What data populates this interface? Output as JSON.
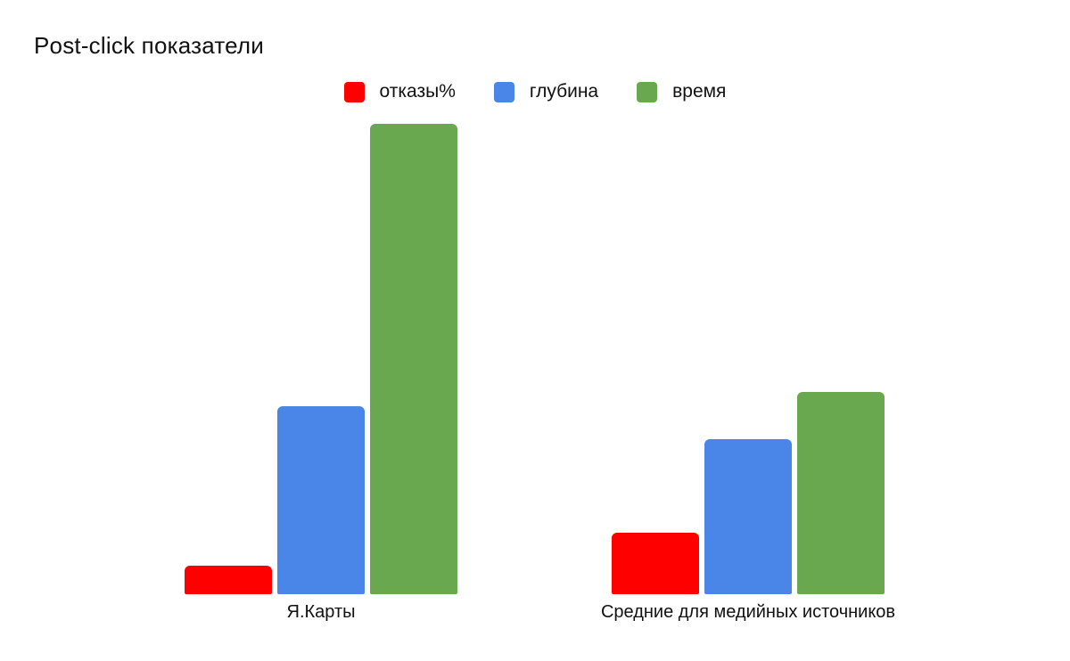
{
  "chart_data": {
    "type": "bar",
    "title": "Post-click показатели",
    "categories": [
      "Я.Карты",
      "Средние для медийных источников"
    ],
    "series": [
      {
        "name": "отказы%",
        "color": "#ff0000",
        "values": [
          6,
          13
        ]
      },
      {
        "name": "глубина",
        "color": "#4a86e8",
        "values": [
          40,
          33
        ]
      },
      {
        "name": "время",
        "color": "#6aa84f",
        "values": [
          100,
          43
        ]
      }
    ],
    "ylim": [
      0,
      105
    ],
    "grid": false,
    "axes_visible": false,
    "legend_position": "top",
    "background": "#ffffff",
    "text_color": "#111111"
  }
}
